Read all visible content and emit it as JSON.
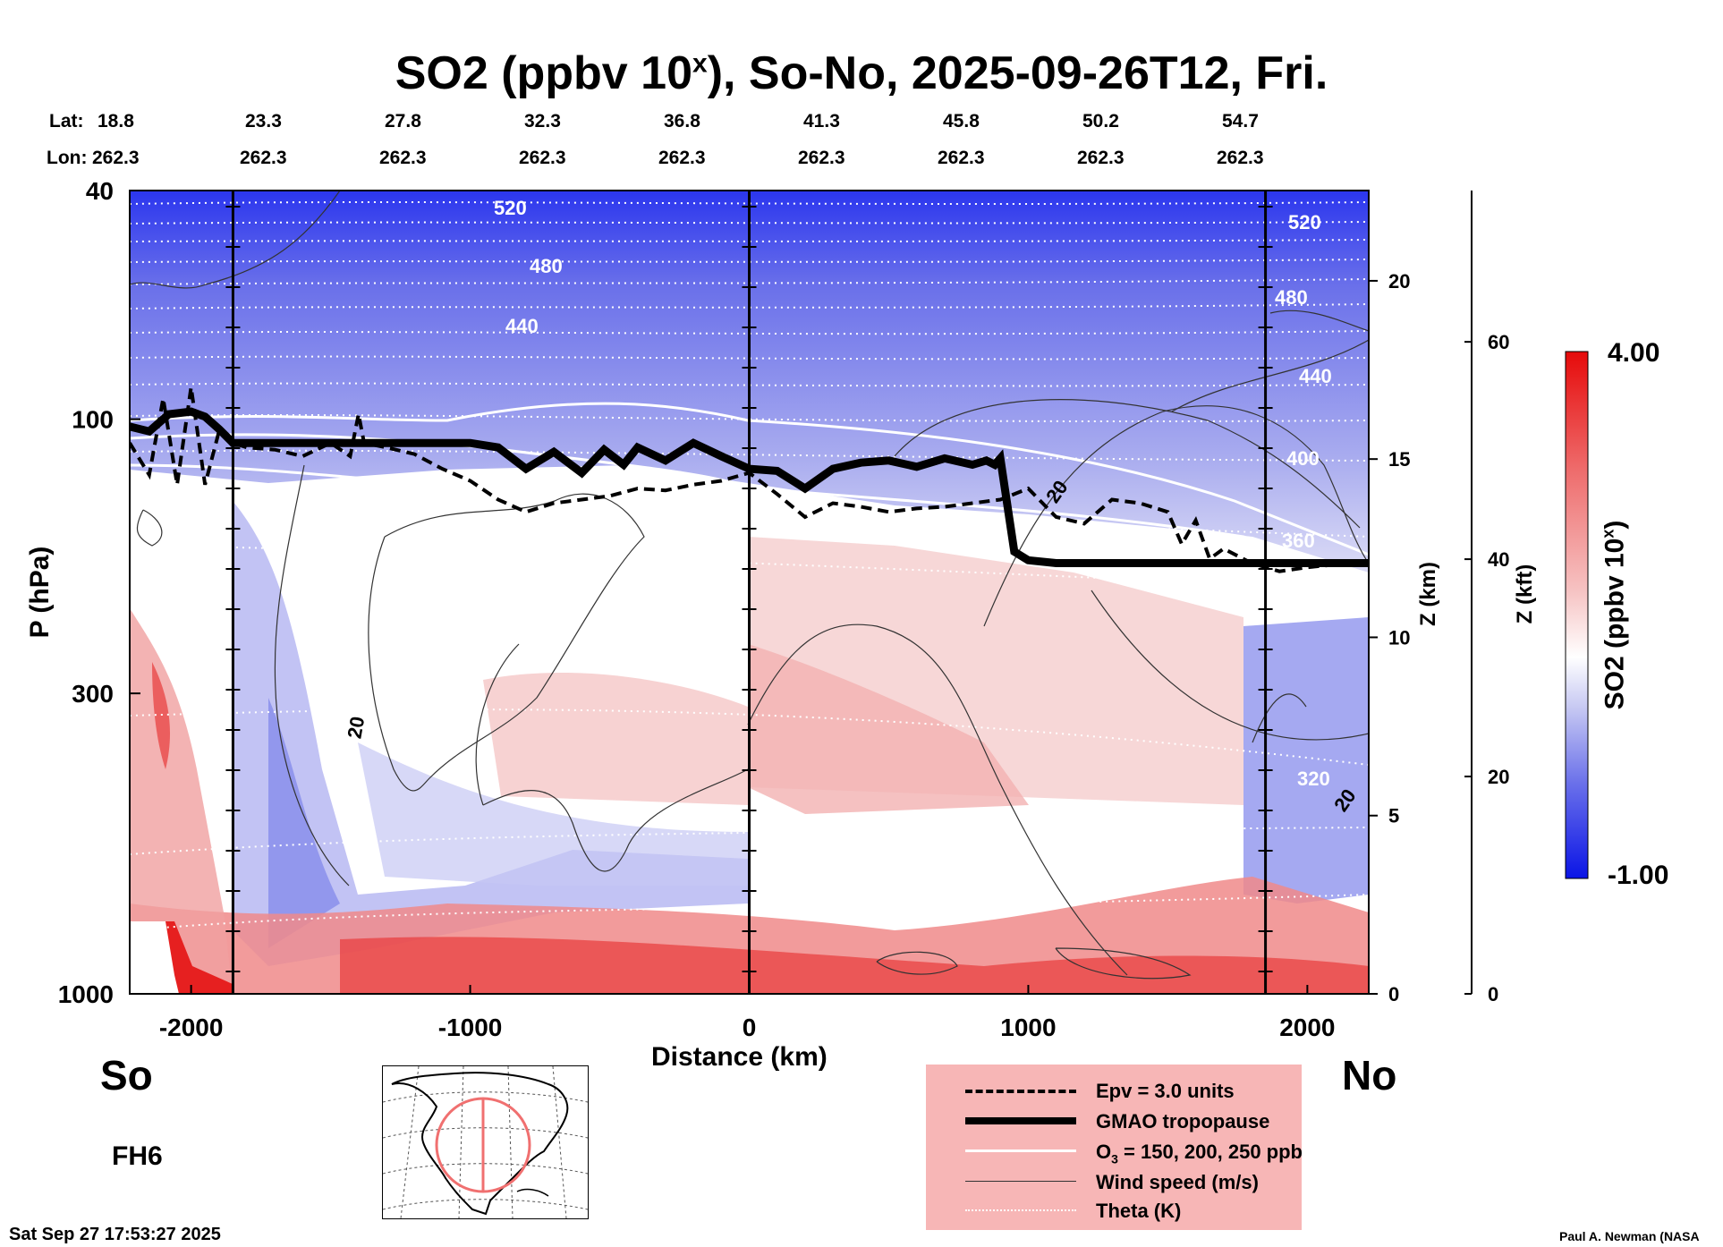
{
  "title": "SO2 (ppbv 10",
  "title_sup": "x",
  "title_rest": "), So-No, 2025-09-26T12, Fri.",
  "header": {
    "lat_label": "Lat:",
    "lon_label": "Lon:",
    "lats": [
      "18.8",
      "23.3",
      "27.8",
      "32.3",
      "36.8",
      "41.3",
      "45.8",
      "50.2",
      "54.7"
    ],
    "lons": [
      "262.3",
      "262.3",
      "262.3",
      "262.3",
      "262.3",
      "262.3",
      "262.3",
      "262.3",
      "262.3"
    ]
  },
  "chart_data": {
    "type": "heatmap",
    "title": "SO2 (ppbv 10^x), So-No, 2025-09-26T12, Fri.",
    "xlabel": "Distance (km)",
    "ylabel": "P (hPa)",
    "y2label": "Z (km)",
    "y3label": "Z (kft)",
    "xlim": [
      -2220,
      2220
    ],
    "ylim": [
      1000,
      40
    ],
    "y_scale": "log",
    "x_ticks": [
      "-2000",
      "-1000",
      "0",
      "1000",
      "2000"
    ],
    "x_tick_values": [
      -2000,
      -1000,
      0,
      1000,
      2000
    ],
    "y_ticks": [
      "40",
      "100",
      "300",
      "1000"
    ],
    "y_tick_values": [
      40,
      100,
      300,
      1000
    ],
    "z_km_ticks": [
      "0",
      "5",
      "10",
      "15",
      "20"
    ],
    "z_km_values": [
      0,
      5,
      10,
      15,
      20
    ],
    "z_kft_ticks": [
      "0",
      "20",
      "40",
      "60"
    ],
    "z_kft_values": [
      0,
      20,
      40,
      60
    ],
    "vertical_markers_km": [
      -1850,
      0,
      1850
    ],
    "colorbar": {
      "label": "SO2 (ppbv 10",
      "label_sup": "x",
      "label_end": ")",
      "max": "4.00",
      "min": "-1.00",
      "colors": [
        "#0a14e6",
        "#6a70ea",
        "#c4c6f2",
        "#ffffff",
        "#f6c1c1",
        "#ee6a6a",
        "#e60a0a"
      ]
    },
    "tropopause": {
      "x": [
        -2220,
        -2150,
        -2080,
        -2000,
        -1950,
        -1900,
        -1850,
        -1600,
        -1200,
        -1000,
        -900,
        -800,
        -700,
        -600,
        -520,
        -450,
        -400,
        -300,
        -200,
        -100,
        0,
        100,
        200,
        300,
        400,
        500,
        600,
        700,
        800,
        850,
        880,
        900,
        950,
        1000,
        1100,
        1300,
        1600,
        1850,
        2220
      ],
      "p": [
        103,
        105,
        98,
        97,
        99,
        104,
        110,
        110,
        110,
        110,
        112,
        122,
        114,
        124,
        113,
        120,
        112,
        118,
        110,
        116,
        122,
        123,
        132,
        122,
        119,
        118,
        121,
        117,
        120,
        118,
        120,
        117,
        170,
        176,
        178,
        178,
        178,
        178,
        178
      ]
    },
    "epv_3": {
      "x": [
        -2220,
        -2150,
        -2100,
        -2050,
        -2000,
        -1950,
        -1900,
        -1850,
        -1800,
        -1700,
        -1600,
        -1500,
        -1430,
        -1400,
        -1380,
        -1300,
        -1200,
        -1100,
        -1000,
        -900,
        -800,
        -700,
        -600,
        -500,
        -400,
        -300,
        -200,
        -100,
        0,
        100,
        200,
        300,
        400,
        500,
        600,
        700,
        800,
        900,
        1000,
        1100,
        1200,
        1300,
        1400,
        1500,
        1550,
        1600,
        1650,
        1700,
        1800,
        1900,
        2000,
        2100,
        2220
      ],
      "p": [
        110,
        125,
        92,
        130,
        88,
        130,
        105,
        110,
        112,
        113,
        116,
        110,
        116,
        98,
        110,
        112,
        115,
        122,
        128,
        138,
        145,
        140,
        138,
        136,
        132,
        133,
        130,
        128,
        124,
        135,
        148,
        140,
        142,
        145,
        143,
        142,
        140,
        138,
        132,
        148,
        152,
        138,
        140,
        145,
        165,
        150,
        175,
        168,
        178,
        184,
        181,
        179,
        178
      ]
    },
    "wind_speed_contour_label": "20",
    "theta_labels": [
      "520",
      "480",
      "440",
      "400",
      "360",
      "320"
    ],
    "legend": [
      {
        "label": "Epv = 3.0 units",
        "style": "dashed-thick-black"
      },
      {
        "label": "GMAO tropopause",
        "style": "solid-thickest-black"
      },
      {
        "label": "O",
        "sub": "3",
        "label_end": " = 150, 200, 250 ppb",
        "style": "solid-white"
      },
      {
        "label": "Wind speed (m/s)",
        "style": "solid-thin-black"
      },
      {
        "label": "Theta (K)",
        "style": "dotted-white"
      }
    ]
  },
  "so_label": "So",
  "no_label": "No",
  "fh_label": "FH6",
  "timestamp": "Sat Sep 27 17:53:27 2025",
  "credit": "Paul A. Newman (NASA"
}
